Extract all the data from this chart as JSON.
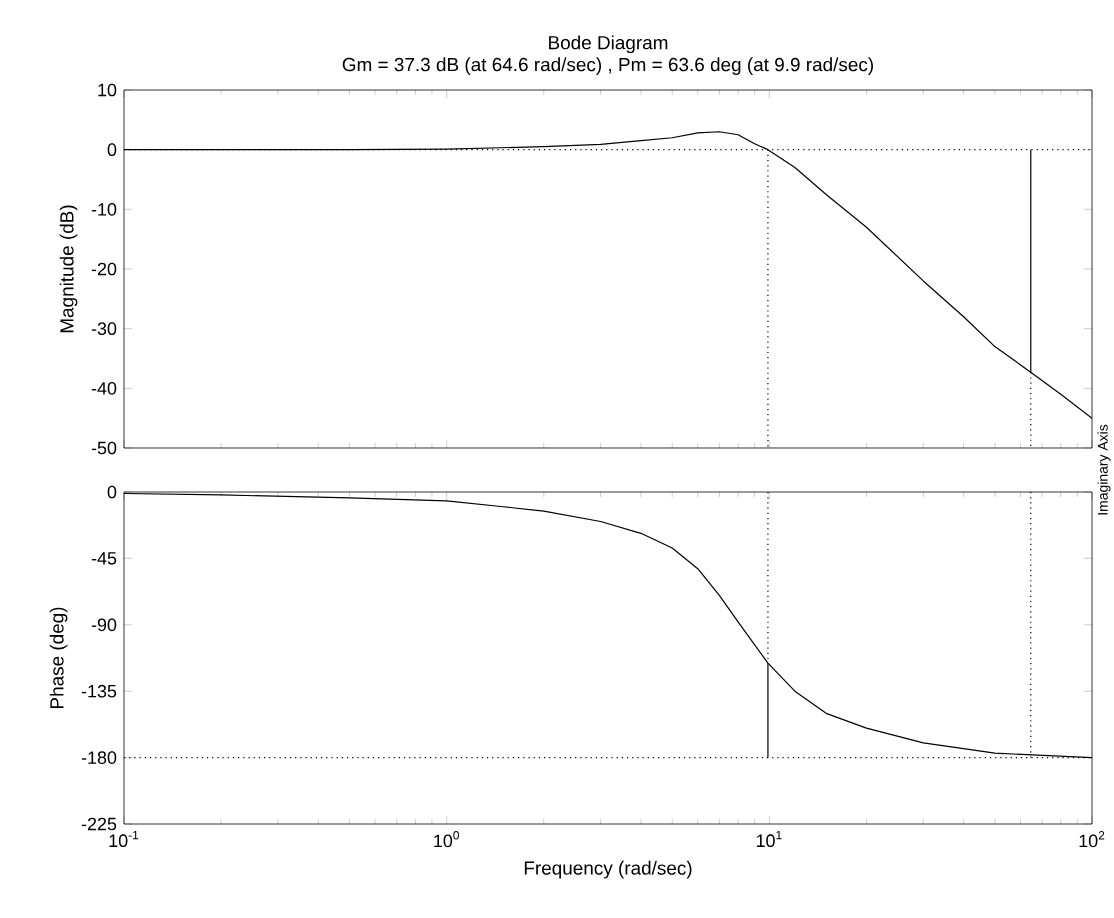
{
  "chart_data": [
    {
      "type": "line",
      "title": "Bode Diagram",
      "subtitle": "Gm = 37.3 dB (at 64.6 rad/sec) ,  Pm = 63.6 deg (at 9.9 rad/sec)",
      "ylabel": "Magnitude (dB)",
      "log": "x",
      "xlim": [
        0.1,
        100
      ],
      "ylim": [
        -50,
        10
      ],
      "yticks": [
        -50,
        -40,
        -30,
        -20,
        -10,
        0,
        10
      ],
      "xticks": [
        {
          "value": 0.1,
          "label": null
        },
        {
          "value": 1,
          "label": null
        },
        {
          "value": 10,
          "label": null
        },
        {
          "value": 100,
          "label": null
        }
      ],
      "tick_labels": "y",
      "grid": false,
      "marker": "none",
      "annotations": [
        "Imaginary Axis"
      ],
      "series": [
        {
          "x": [
            0.1,
            0.5,
            1,
            2,
            3,
            4,
            5,
            6,
            7,
            8,
            9,
            9.9,
            12,
            15,
            20,
            30,
            40,
            50,
            64.6,
            80,
            100
          ],
          "values": [
            0,
            0,
            0.1,
            0.5,
            0.9,
            1.5,
            2,
            2.8,
            3,
            2.5,
            1,
            0,
            -3,
            -7.5,
            -13,
            -22,
            -28,
            -33,
            -37.3,
            -41,
            -45
          ],
          "color": "#000000",
          "line_style": "solid"
        },
        {
          "x": [
            0.1,
            100
          ],
          "values": [
            0,
            0
          ],
          "color": "#000000",
          "line_style": "dotted"
        },
        {
          "x": [
            9.9,
            9.9
          ],
          "values": [
            0,
            -50
          ],
          "color": "#000000",
          "line_style": "dotted"
        },
        {
          "x": [
            64.6,
            64.6
          ],
          "values": [
            0,
            -37.3
          ],
          "color": "#000000",
          "line_style": "solid"
        },
        {
          "x": [
            64.6,
            64.6
          ],
          "values": [
            -37.3,
            -50
          ],
          "color": "#000000",
          "line_style": "dotted"
        }
      ]
    },
    {
      "type": "line",
      "xlabel": "Frequency  (rad/sec)",
      "ylabel": "Phase (deg)",
      "log": "x",
      "xlim": [
        0.1,
        100
      ],
      "ylim": [
        -225,
        0
      ],
      "yticks": [
        -225,
        -180,
        -135,
        -90,
        -45,
        0
      ],
      "xticks": [
        {
          "value": 0.1,
          "label": "10$^{-1}$"
        },
        {
          "value": 1,
          "label": "10$^{0}$"
        },
        {
          "value": 10,
          "label": "10$^{1}$"
        },
        {
          "value": 100,
          "label": "10$^{2}$"
        }
      ],
      "grid": false,
      "marker": "none",
      "series": [
        {
          "x": [
            0.1,
            0.2,
            0.5,
            1,
            1.5,
            2,
            3,
            4,
            5,
            6,
            7,
            8,
            9.9,
            12,
            15,
            20,
            30,
            50,
            100
          ],
          "values": [
            -1,
            -2,
            -4,
            -6,
            -10,
            -13,
            -20,
            -28,
            -38,
            -52,
            -70,
            -88,
            -116,
            -135,
            -150,
            -160,
            -170,
            -177,
            -180
          ],
          "color": "#000000",
          "line_style": "solid"
        },
        {
          "x": [
            0.1,
            100
          ],
          "values": [
            -180,
            -180
          ],
          "color": "#000000",
          "line_style": "dotted"
        },
        {
          "x": [
            9.9,
            9.9
          ],
          "values": [
            0,
            -116
          ],
          "color": "#000000",
          "line_style": "dotted"
        },
        {
          "x": [
            9.9,
            9.9
          ],
          "values": [
            -116,
            -180
          ],
          "color": "#000000",
          "line_style": "solid"
        },
        {
          "x": [
            64.6,
            64.6
          ],
          "values": [
            0,
            -180
          ],
          "color": "#000000",
          "line_style": "dotted"
        }
      ]
    }
  ]
}
